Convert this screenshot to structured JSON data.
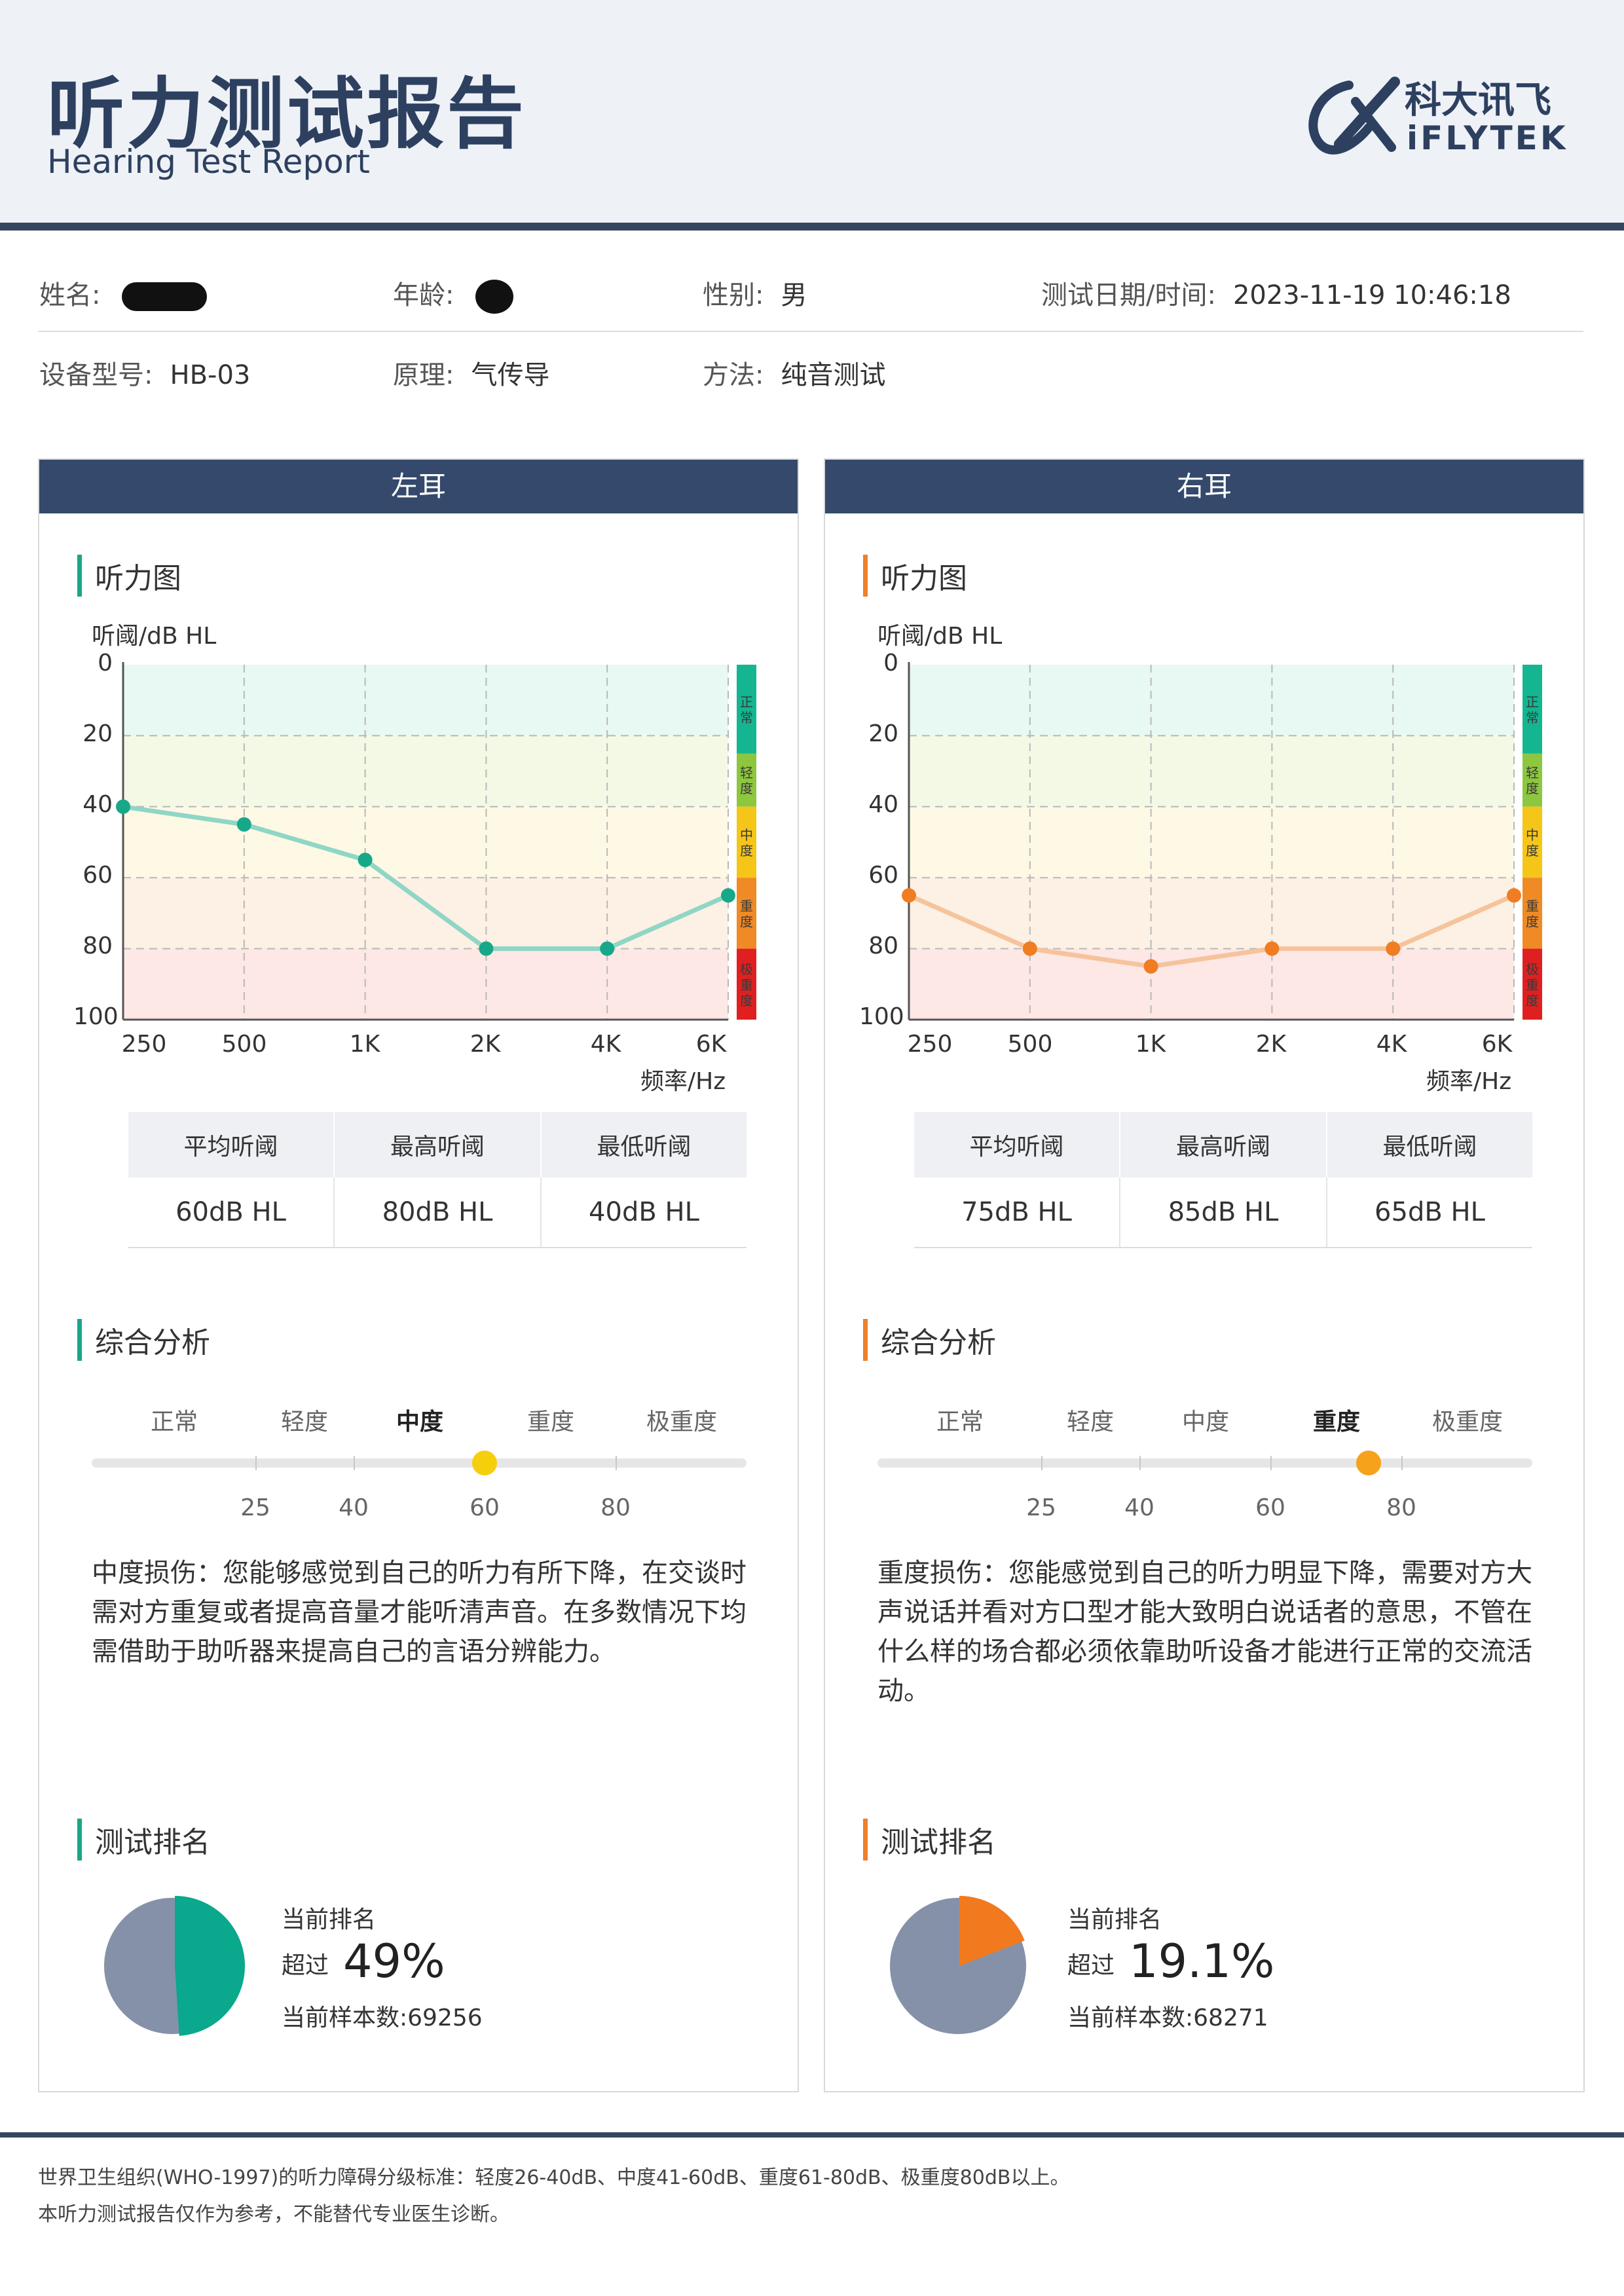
{
  "header": {
    "title": "听力测试报告",
    "subtitle": "Hearing Test Report",
    "logo_cn": "科大讯飞",
    "logo_en": "iFLYTEK"
  },
  "patient": {
    "name_label": "姓名:",
    "age_label": "年龄:",
    "gender_label": "性别:",
    "gender": "男",
    "datetime_label": "测试日期/时间:",
    "datetime": "2023-11-19 10:46:18",
    "device_label": "设备型号:",
    "device": "HB-03",
    "principle_label": "原理:",
    "principle": "气传导",
    "method_label": "方法:",
    "method": "纯音测试"
  },
  "common": {
    "audiogram_title": "听力图",
    "y_axis_label": "听阈/dB HL",
    "x_axis_label": "频率/Hz",
    "y_ticks": [
      "0",
      "20",
      "40",
      "60",
      "80",
      "100"
    ],
    "x_ticks": [
      "250",
      "500",
      "1K",
      "2K",
      "4K",
      "6K"
    ],
    "band_labels": [
      "正常",
      "轻度",
      "中度",
      "重度",
      "极重度"
    ],
    "band_colors": [
      "#13b690",
      "#8dc63f",
      "#f5c518",
      "#f08a24",
      "#e02020"
    ],
    "stats_headers": [
      "平均听阈",
      "最高听阈",
      "最低听阈"
    ],
    "analysis_title": "综合分析",
    "severity_labels": [
      "正常",
      "轻度",
      "中度",
      "重度",
      "极重度"
    ],
    "severity_ticks": [
      "25",
      "40",
      "60",
      "80"
    ],
    "ranking_title": "测试排名",
    "ranking_current_label": "当前排名",
    "ranking_exceed_label": "超过",
    "ranking_sample_label": "当前样本数:"
  },
  "left": {
    "title": "左耳",
    "accent": "#1aa58a",
    "line_color": "#8fd6c6",
    "point_color": "#17a88a",
    "stats": [
      "60dB HL",
      "80dB HL",
      "40dB HL"
    ],
    "severity_value": 60,
    "severity_active": 2,
    "dot_color": "#f5cf0c",
    "description": "中度损伤：您能够感觉到自己的听力有所下降，在交谈时需对方重复或者提高音量才能听清声音。在多数情况下均需借助于助听器来提高自己的言语分辨能力。",
    "ranking_percent": "49%",
    "ranking_fraction": 0.49,
    "sample_count": "69256",
    "pie_color": "#0aa88c"
  },
  "right": {
    "title": "右耳",
    "accent": "#ef7f2a",
    "line_color": "#f6c39c",
    "point_color": "#f07d22",
    "stats": [
      "75dB HL",
      "85dB HL",
      "65dB HL"
    ],
    "severity_value": 75,
    "severity_active": 3,
    "dot_color": "#f7a21b",
    "description": "重度损伤：您能感觉到自己的听力明显下降，需要对方大声说话并看对方口型才能大致明白说话者的意思，不管在什么样的场合都必须依靠助听设备才能进行正常的交流活动。",
    "ranking_percent": "19.1%",
    "ranking_fraction": 0.191,
    "sample_count": "68271",
    "pie_color": "#f27a1e"
  },
  "chart_data": [
    {
      "type": "line",
      "title": "左耳 听力图",
      "xlabel": "频率/Hz",
      "ylabel": "听阈/dB HL",
      "x": [
        "250",
        "500",
        "1K",
        "2K",
        "4K",
        "6K"
      ],
      "y_inverted": true,
      "ylim": [
        0,
        100
      ],
      "grid": true,
      "series": [
        {
          "values": [
            40,
            45,
            55,
            80,
            80,
            65
          ]
        }
      ]
    },
    {
      "type": "line",
      "title": "右耳 听力图",
      "xlabel": "频率/Hz",
      "ylabel": "听阈/dB HL",
      "x": [
        "250",
        "500",
        "1K",
        "2K",
        "4K",
        "6K"
      ],
      "y_inverted": true,
      "ylim": [
        0,
        100
      ],
      "grid": true,
      "series": [
        {
          "values": [
            65,
            80,
            85,
            80,
            80,
            65
          ]
        }
      ]
    }
  ],
  "footer": {
    "line1": "世界卫生组织(WHO-1997)的听力障碍分级标准：轻度26-40dB、中度41-60dB、重度61-80dB、极重度80dB以上。",
    "line2": "本听力测试报告仅作为参考，不能替代专业医生诊断。"
  }
}
